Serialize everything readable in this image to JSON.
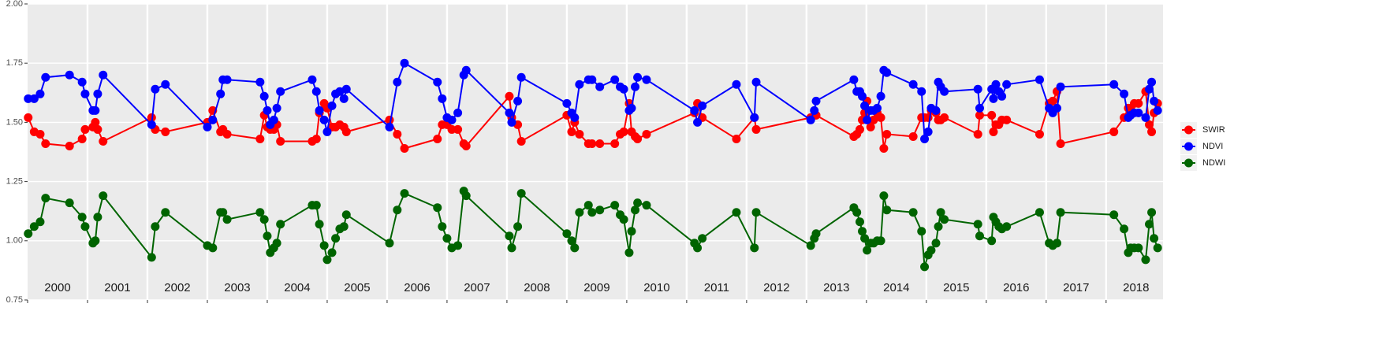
{
  "chart_data": {
    "type": "line",
    "x": [
      2000.01,
      2000.11,
      2000.21,
      2000.3,
      2000.7,
      2000.91,
      2000.96,
      2001.09,
      2001.13,
      2001.17,
      2001.26,
      2002.07,
      2002.13,
      2002.3,
      2003.0,
      2003.09,
      2003.22,
      2003.26,
      2003.33,
      2003.88,
      2003.95,
      2004.0,
      2004.05,
      2004.11,
      2004.16,
      2004.22,
      2004.75,
      2004.82,
      2004.87,
      2004.95,
      2005.0,
      2005.08,
      2005.14,
      2005.21,
      2005.28,
      2005.32,
      2006.04,
      2006.17,
      2006.29,
      2006.84,
      2006.92,
      2007.0,
      2007.08,
      2007.18,
      2007.28,
      2007.32,
      2008.04,
      2008.08,
      2008.18,
      2008.24,
      2009.0,
      2009.08,
      2009.13,
      2009.21,
      2009.36,
      2009.42,
      2009.55,
      2009.8,
      2009.89,
      2009.95,
      2010.04,
      2010.08,
      2010.14,
      2010.18,
      2010.33,
      2011.13,
      2011.18,
      2011.26,
      2011.83,
      2012.13,
      2012.16,
      2013.07,
      2013.13,
      2013.16,
      2013.79,
      2013.84,
      2013.89,
      2013.93,
      2013.97,
      2014.01,
      2014.07,
      2014.12,
      2014.18,
      2014.24,
      2014.29,
      2014.34,
      2014.78,
      2014.92,
      2014.97,
      2015.03,
      2015.08,
      2015.16,
      2015.2,
      2015.24,
      2015.3,
      2015.86,
      2015.89,
      2016.09,
      2016.12,
      2016.16,
      2016.21,
      2016.26,
      2016.34,
      2016.89,
      2017.05,
      2017.11,
      2017.18,
      2017.24,
      2018.13,
      2018.3,
      2018.37,
      2018.41,
      2018.47,
      2018.54,
      2018.66,
      2018.72,
      2018.76,
      2018.8,
      2018.86
    ],
    "series": [
      {
        "name": "SWIR",
        "color": "#ff0000",
        "values": [
          1.52,
          1.46,
          1.45,
          1.41,
          1.4,
          1.43,
          1.47,
          1.48,
          1.5,
          1.47,
          1.42,
          1.52,
          1.47,
          1.46,
          1.5,
          1.55,
          1.46,
          1.47,
          1.45,
          1.43,
          1.53,
          1.48,
          1.47,
          1.47,
          1.49,
          1.42,
          1.42,
          1.43,
          1.54,
          1.58,
          1.56,
          1.48,
          1.48,
          1.49,
          1.48,
          1.46,
          1.51,
          1.45,
          1.39,
          1.43,
          1.49,
          1.49,
          1.47,
          1.47,
          1.41,
          1.4,
          1.61,
          1.52,
          1.49,
          1.42,
          1.53,
          1.46,
          1.5,
          1.45,
          1.41,
          1.41,
          1.41,
          1.41,
          1.45,
          1.46,
          1.58,
          1.46,
          1.44,
          1.43,
          1.45,
          1.54,
          1.58,
          1.52,
          1.43,
          1.52,
          1.47,
          1.52,
          1.53,
          1.53,
          1.44,
          1.45,
          1.47,
          1.51,
          1.54,
          1.59,
          1.48,
          1.51,
          1.54,
          1.52,
          1.39,
          1.45,
          1.44,
          1.52,
          1.52,
          1.52,
          1.55,
          1.54,
          1.51,
          1.51,
          1.52,
          1.45,
          1.53,
          1.53,
          1.46,
          1.49,
          1.49,
          1.51,
          1.51,
          1.45,
          1.58,
          1.59,
          1.63,
          1.41,
          1.46,
          1.52,
          1.56,
          1.56,
          1.58,
          1.58,
          1.63,
          1.49,
          1.46,
          1.54,
          1.58
        ]
      },
      {
        "name": "NDVI",
        "color": "#0000ff",
        "values": [
          1.6,
          1.6,
          1.62,
          1.69,
          1.7,
          1.67,
          1.62,
          1.55,
          1.55,
          1.62,
          1.7,
          1.49,
          1.64,
          1.66,
          1.48,
          1.51,
          1.62,
          1.68,
          1.68,
          1.67,
          1.61,
          1.55,
          1.49,
          1.51,
          1.56,
          1.63,
          1.68,
          1.63,
          1.55,
          1.51,
          1.46,
          1.57,
          1.62,
          1.63,
          1.6,
          1.64,
          1.48,
          1.67,
          1.75,
          1.67,
          1.6,
          1.52,
          1.51,
          1.54,
          1.7,
          1.72,
          1.54,
          1.5,
          1.59,
          1.69,
          1.58,
          1.54,
          1.52,
          1.66,
          1.68,
          1.68,
          1.65,
          1.68,
          1.65,
          1.64,
          1.55,
          1.56,
          1.65,
          1.69,
          1.68,
          1.55,
          1.5,
          1.57,
          1.66,
          1.52,
          1.67,
          1.51,
          1.55,
          1.59,
          1.68,
          1.63,
          1.63,
          1.61,
          1.57,
          1.51,
          1.55,
          1.55,
          1.56,
          1.61,
          1.72,
          1.71,
          1.66,
          1.63,
          1.43,
          1.46,
          1.56,
          1.55,
          1.67,
          1.65,
          1.63,
          1.64,
          1.56,
          1.64,
          1.6,
          1.66,
          1.63,
          1.61,
          1.66,
          1.68,
          1.56,
          1.54,
          1.56,
          1.65,
          1.66,
          1.62,
          1.52,
          1.53,
          1.54,
          1.54,
          1.52,
          1.64,
          1.67,
          1.59,
          1.55
        ]
      },
      {
        "name": "NDWI",
        "color": "#006400",
        "values": [
          1.03,
          1.06,
          1.08,
          1.18,
          1.16,
          1.1,
          1.06,
          0.99,
          1.0,
          1.1,
          1.19,
          0.93,
          1.06,
          1.12,
          0.98,
          0.97,
          1.12,
          1.12,
          1.09,
          1.12,
          1.09,
          1.02,
          0.95,
          0.97,
          0.99,
          1.07,
          1.15,
          1.15,
          1.07,
          0.98,
          0.92,
          0.95,
          1.01,
          1.05,
          1.06,
          1.11,
          0.99,
          1.13,
          1.2,
          1.14,
          1.06,
          1.01,
          0.97,
          0.98,
          1.21,
          1.19,
          1.02,
          0.97,
          1.06,
          1.2,
          1.03,
          1.0,
          0.97,
          1.12,
          1.15,
          1.12,
          1.13,
          1.15,
          1.11,
          1.09,
          0.95,
          1.04,
          1.13,
          1.16,
          1.15,
          0.99,
          0.97,
          1.01,
          1.12,
          0.97,
          1.12,
          0.98,
          1.01,
          1.03,
          1.14,
          1.12,
          1.08,
          1.04,
          1.01,
          0.96,
          0.99,
          0.99,
          1.0,
          1.0,
          1.19,
          1.13,
          1.12,
          1.04,
          0.89,
          0.94,
          0.96,
          0.99,
          1.06,
          1.12,
          1.09,
          1.07,
          1.02,
          1.0,
          1.1,
          1.08,
          1.06,
          1.05,
          1.06,
          1.12,
          0.99,
          0.98,
          0.99,
          1.12,
          1.11,
          1.05,
          0.95,
          0.97,
          0.97,
          0.97,
          0.92,
          1.07,
          1.12,
          1.01,
          0.97
        ]
      }
    ],
    "xlim": [
      2000,
      2018.95
    ],
    "xticks": [
      2000,
      2001,
      2002,
      2003,
      2004,
      2005,
      2006,
      2007,
      2008,
      2009,
      2010,
      2011,
      2012,
      2013,
      2014,
      2015,
      2016,
      2017,
      2018
    ],
    "ylim": [
      0.75,
      2.0
    ],
    "yticks": [
      0.75,
      {
        "value": 1.0,
        "label": "1.00"
      },
      1.25,
      {
        "value": 1.5,
        "label": "1.50"
      },
      1.75,
      {
        "value": 2.0,
        "label": "2.00"
      }
    ],
    "grid": true,
    "legend": "right"
  }
}
